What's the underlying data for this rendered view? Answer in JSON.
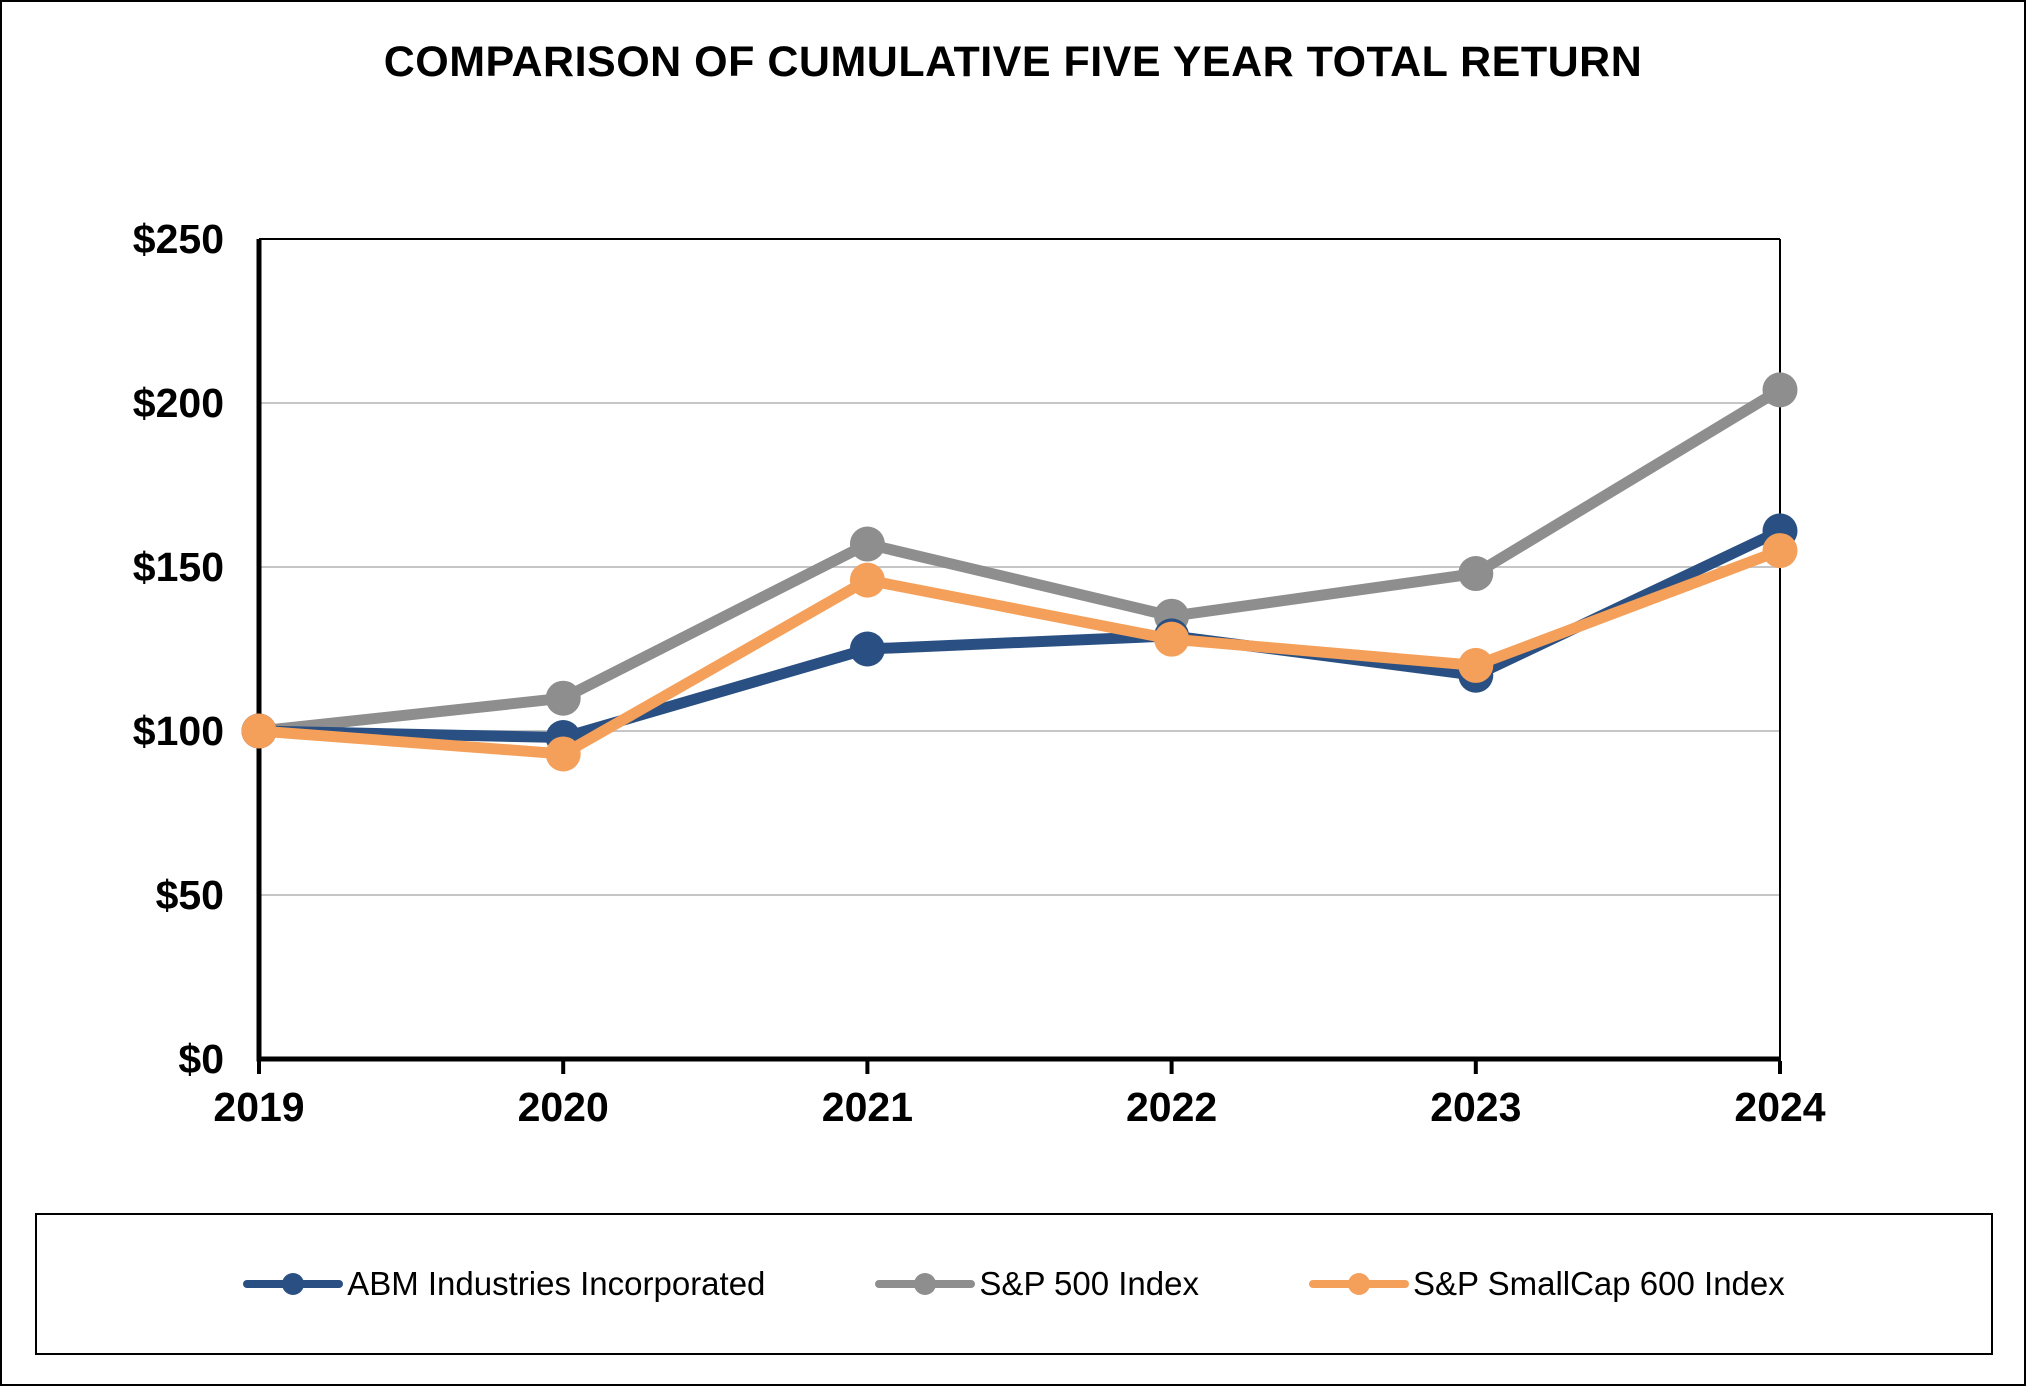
{
  "title": "COMPARISON OF CUMULATIVE FIVE YEAR TOTAL RETURN",
  "colors": {
    "abm_blue": "#2A5083",
    "sp500_gray": "#8E8E8E",
    "smallcap_orange": "#F5A05A",
    "gridline": "#C6C6C6",
    "axis_black": "#000000",
    "background": "#FFFFFF"
  },
  "chart_data": {
    "type": "line",
    "title": "COMPARISON OF CUMULATIVE FIVE YEAR TOTAL RETURN",
    "x_labels": [
      "2019",
      "2020",
      "2021",
      "2022",
      "2023",
      "2024"
    ],
    "y_ticks": [
      {
        "label": "$0",
        "value": 0
      },
      {
        "label": "$50",
        "value": 50
      },
      {
        "label": "$100",
        "value": 100
      },
      {
        "label": "$150",
        "value": 150
      },
      {
        "label": "$200",
        "value": 200
      },
      {
        "label": "$250",
        "value": 250
      }
    ],
    "ylim": [
      0,
      250
    ],
    "grid": "horizontal",
    "legend_position": "bottom",
    "series": [
      {
        "name": "ABM Industries Incorporated",
        "color": "#2A5083",
        "values": [
          100,
          98,
          125,
          129,
          117,
          161
        ]
      },
      {
        "name": "S&P 500 Index",
        "color": "#8E8E8E",
        "values": [
          100,
          110,
          157,
          135,
          148,
          204
        ]
      },
      {
        "name": "S&P SmallCap 600 Index",
        "color": "#F5A05A",
        "values": [
          100,
          93,
          146,
          128,
          120,
          155
        ]
      }
    ]
  }
}
